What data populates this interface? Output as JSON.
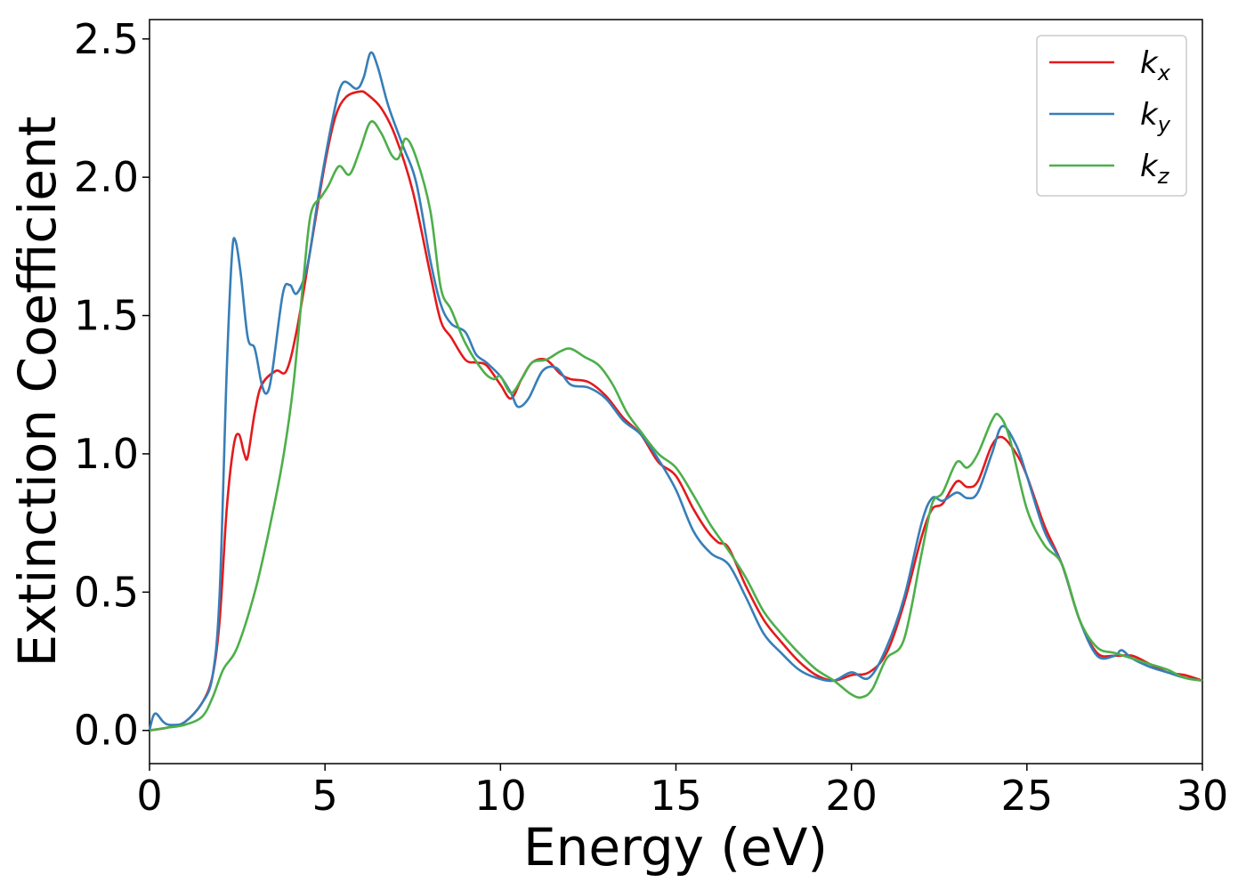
{
  "chart_data": {
    "type": "line",
    "xlabel": "Energy (eV)",
    "ylabel": "Extinction Coefficient",
    "xlim": [
      0,
      30
    ],
    "ylim": [
      -0.12,
      2.57
    ],
    "xticks": [
      "0",
      "5",
      "10",
      "15",
      "20",
      "25",
      "30"
    ],
    "yticks": [
      "0.0",
      "0.5",
      "1.0",
      "1.5",
      "2.0",
      "2.5"
    ],
    "grid": false,
    "legend": {
      "placement": "top-right"
    },
    "series": [
      {
        "name": "k",
        "subscript": "x",
        "color": "#e41a1c",
        "points": [
          [
            0,
            0.0
          ],
          [
            0.5,
            0.01
          ],
          [
            1.0,
            0.03
          ],
          [
            1.5,
            0.1
          ],
          [
            1.8,
            0.2
          ],
          [
            2.0,
            0.4
          ],
          [
            2.2,
            0.8
          ],
          [
            2.4,
            1.03
          ],
          [
            2.55,
            1.07
          ],
          [
            2.7,
            1.0
          ],
          [
            2.8,
            0.99
          ],
          [
            3.0,
            1.15
          ],
          [
            3.2,
            1.25
          ],
          [
            3.6,
            1.3
          ],
          [
            3.9,
            1.3
          ],
          [
            4.2,
            1.45
          ],
          [
            4.6,
            1.75
          ],
          [
            5.0,
            2.05
          ],
          [
            5.3,
            2.22
          ],
          [
            5.6,
            2.29
          ],
          [
            6.0,
            2.31
          ],
          [
            6.2,
            2.3
          ],
          [
            6.6,
            2.25
          ],
          [
            7.0,
            2.15
          ],
          [
            7.5,
            1.95
          ],
          [
            8.0,
            1.65
          ],
          [
            8.3,
            1.48
          ],
          [
            8.6,
            1.42
          ],
          [
            9.0,
            1.34
          ],
          [
            9.3,
            1.33
          ],
          [
            9.6,
            1.32
          ],
          [
            10.0,
            1.25
          ],
          [
            10.3,
            1.2
          ],
          [
            10.6,
            1.27
          ],
          [
            10.9,
            1.33
          ],
          [
            11.3,
            1.34
          ],
          [
            11.7,
            1.29
          ],
          [
            12.0,
            1.27
          ],
          [
            12.5,
            1.26
          ],
          [
            13.0,
            1.21
          ],
          [
            13.5,
            1.13
          ],
          [
            14.0,
            1.07
          ],
          [
            14.5,
            0.97
          ],
          [
            15.0,
            0.92
          ],
          [
            15.5,
            0.8
          ],
          [
            15.9,
            0.72
          ],
          [
            16.2,
            0.68
          ],
          [
            16.5,
            0.66
          ],
          [
            17.0,
            0.52
          ],
          [
            17.5,
            0.4
          ],
          [
            18.0,
            0.32
          ],
          [
            18.5,
            0.25
          ],
          [
            19.0,
            0.2
          ],
          [
            19.5,
            0.18
          ],
          [
            20.0,
            0.2
          ],
          [
            20.5,
            0.21
          ],
          [
            21.0,
            0.28
          ],
          [
            21.5,
            0.46
          ],
          [
            22.0,
            0.7
          ],
          [
            22.3,
            0.8
          ],
          [
            22.6,
            0.82
          ],
          [
            23.0,
            0.9
          ],
          [
            23.3,
            0.88
          ],
          [
            23.6,
            0.9
          ],
          [
            24.0,
            1.03
          ],
          [
            24.3,
            1.06
          ],
          [
            24.7,
            1.0
          ],
          [
            25.0,
            0.92
          ],
          [
            25.5,
            0.74
          ],
          [
            26.0,
            0.6
          ],
          [
            26.5,
            0.4
          ],
          [
            27.0,
            0.28
          ],
          [
            27.5,
            0.27
          ],
          [
            28.0,
            0.27
          ],
          [
            28.5,
            0.24
          ],
          [
            29.0,
            0.21
          ],
          [
            29.5,
            0.2
          ],
          [
            30.0,
            0.18
          ]
        ]
      },
      {
        "name": "k",
        "subscript": "y",
        "color": "#377eb8",
        "points": [
          [
            0,
            0.0
          ],
          [
            0.1,
            0.05
          ],
          [
            0.2,
            0.06
          ],
          [
            0.4,
            0.03
          ],
          [
            0.6,
            0.02
          ],
          [
            1.0,
            0.03
          ],
          [
            1.5,
            0.1
          ],
          [
            1.8,
            0.2
          ],
          [
            2.0,
            0.5
          ],
          [
            2.2,
            1.3
          ],
          [
            2.35,
            1.72
          ],
          [
            2.45,
            1.77
          ],
          [
            2.6,
            1.65
          ],
          [
            2.8,
            1.42
          ],
          [
            3.0,
            1.38
          ],
          [
            3.2,
            1.25
          ],
          [
            3.35,
            1.22
          ],
          [
            3.5,
            1.3
          ],
          [
            3.8,
            1.58
          ],
          [
            4.0,
            1.61
          ],
          [
            4.2,
            1.58
          ],
          [
            4.5,
            1.68
          ],
          [
            4.8,
            1.92
          ],
          [
            5.2,
            2.2
          ],
          [
            5.5,
            2.34
          ],
          [
            5.9,
            2.32
          ],
          [
            6.1,
            2.36
          ],
          [
            6.3,
            2.45
          ],
          [
            6.5,
            2.4
          ],
          [
            6.8,
            2.26
          ],
          [
            7.2,
            2.12
          ],
          [
            7.6,
            1.98
          ],
          [
            8.0,
            1.7
          ],
          [
            8.3,
            1.54
          ],
          [
            8.6,
            1.47
          ],
          [
            9.0,
            1.44
          ],
          [
            9.3,
            1.36
          ],
          [
            9.6,
            1.33
          ],
          [
            10.0,
            1.28
          ],
          [
            10.3,
            1.22
          ],
          [
            10.5,
            1.17
          ],
          [
            10.8,
            1.2
          ],
          [
            11.2,
            1.3
          ],
          [
            11.6,
            1.31
          ],
          [
            12.0,
            1.25
          ],
          [
            12.5,
            1.24
          ],
          [
            13.0,
            1.2
          ],
          [
            13.5,
            1.12
          ],
          [
            14.0,
            1.07
          ],
          [
            14.5,
            0.98
          ],
          [
            15.0,
            0.87
          ],
          [
            15.5,
            0.72
          ],
          [
            16.0,
            0.64
          ],
          [
            16.5,
            0.6
          ],
          [
            17.0,
            0.48
          ],
          [
            17.5,
            0.35
          ],
          [
            18.0,
            0.28
          ],
          [
            18.5,
            0.22
          ],
          [
            19.0,
            0.19
          ],
          [
            19.5,
            0.18
          ],
          [
            20.0,
            0.21
          ],
          [
            20.5,
            0.19
          ],
          [
            21.0,
            0.3
          ],
          [
            21.5,
            0.48
          ],
          [
            22.0,
            0.75
          ],
          [
            22.3,
            0.84
          ],
          [
            22.6,
            0.83
          ],
          [
            23.0,
            0.86
          ],
          [
            23.3,
            0.84
          ],
          [
            23.6,
            0.86
          ],
          [
            24.0,
            1.0
          ],
          [
            24.3,
            1.1
          ],
          [
            24.7,
            1.03
          ],
          [
            25.0,
            0.92
          ],
          [
            25.5,
            0.72
          ],
          [
            26.0,
            0.6
          ],
          [
            26.5,
            0.4
          ],
          [
            27.0,
            0.27
          ],
          [
            27.5,
            0.27
          ],
          [
            27.7,
            0.29
          ],
          [
            28.0,
            0.26
          ],
          [
            28.5,
            0.23
          ],
          [
            29.0,
            0.21
          ],
          [
            29.5,
            0.19
          ],
          [
            30.0,
            0.18
          ]
        ]
      },
      {
        "name": "k",
        "subscript": "z",
        "color": "#4daf4a",
        "points": [
          [
            0,
            0.0
          ],
          [
            0.5,
            0.01
          ],
          [
            1.0,
            0.02
          ],
          [
            1.5,
            0.05
          ],
          [
            1.8,
            0.12
          ],
          [
            2.1,
            0.22
          ],
          [
            2.5,
            0.3
          ],
          [
            3.0,
            0.5
          ],
          [
            3.4,
            0.72
          ],
          [
            3.8,
            0.98
          ],
          [
            4.1,
            1.25
          ],
          [
            4.4,
            1.65
          ],
          [
            4.6,
            1.87
          ],
          [
            4.9,
            1.93
          ],
          [
            5.1,
            1.97
          ],
          [
            5.4,
            2.04
          ],
          [
            5.7,
            2.01
          ],
          [
            6.0,
            2.1
          ],
          [
            6.3,
            2.2
          ],
          [
            6.6,
            2.16
          ],
          [
            6.9,
            2.08
          ],
          [
            7.1,
            2.07
          ],
          [
            7.3,
            2.14
          ],
          [
            7.6,
            2.07
          ],
          [
            8.0,
            1.88
          ],
          [
            8.3,
            1.6
          ],
          [
            8.6,
            1.52
          ],
          [
            9.0,
            1.4
          ],
          [
            9.5,
            1.3
          ],
          [
            9.8,
            1.27
          ],
          [
            10.0,
            1.28
          ],
          [
            10.3,
            1.22
          ],
          [
            10.6,
            1.27
          ],
          [
            10.9,
            1.33
          ],
          [
            11.3,
            1.34
          ],
          [
            11.7,
            1.37
          ],
          [
            12.0,
            1.38
          ],
          [
            12.4,
            1.35
          ],
          [
            12.8,
            1.32
          ],
          [
            13.2,
            1.25
          ],
          [
            13.6,
            1.15
          ],
          [
            14.0,
            1.08
          ],
          [
            14.5,
            1.0
          ],
          [
            15.0,
            0.95
          ],
          [
            15.5,
            0.85
          ],
          [
            16.0,
            0.74
          ],
          [
            16.5,
            0.65
          ],
          [
            17.0,
            0.55
          ],
          [
            17.5,
            0.43
          ],
          [
            18.0,
            0.35
          ],
          [
            18.5,
            0.28
          ],
          [
            19.0,
            0.22
          ],
          [
            19.5,
            0.18
          ],
          [
            20.0,
            0.13
          ],
          [
            20.3,
            0.12
          ],
          [
            20.6,
            0.15
          ],
          [
            21.0,
            0.26
          ],
          [
            21.5,
            0.33
          ],
          [
            22.0,
            0.64
          ],
          [
            22.3,
            0.82
          ],
          [
            22.6,
            0.86
          ],
          [
            23.0,
            0.97
          ],
          [
            23.3,
            0.95
          ],
          [
            23.6,
            1.0
          ],
          [
            24.0,
            1.12
          ],
          [
            24.2,
            1.14
          ],
          [
            24.5,
            1.06
          ],
          [
            25.0,
            0.8
          ],
          [
            25.5,
            0.67
          ],
          [
            26.0,
            0.6
          ],
          [
            26.5,
            0.4
          ],
          [
            27.0,
            0.3
          ],
          [
            27.5,
            0.28
          ],
          [
            28.0,
            0.26
          ],
          [
            28.5,
            0.24
          ],
          [
            29.0,
            0.22
          ],
          [
            29.5,
            0.19
          ],
          [
            30.0,
            0.18
          ]
        ]
      }
    ]
  }
}
